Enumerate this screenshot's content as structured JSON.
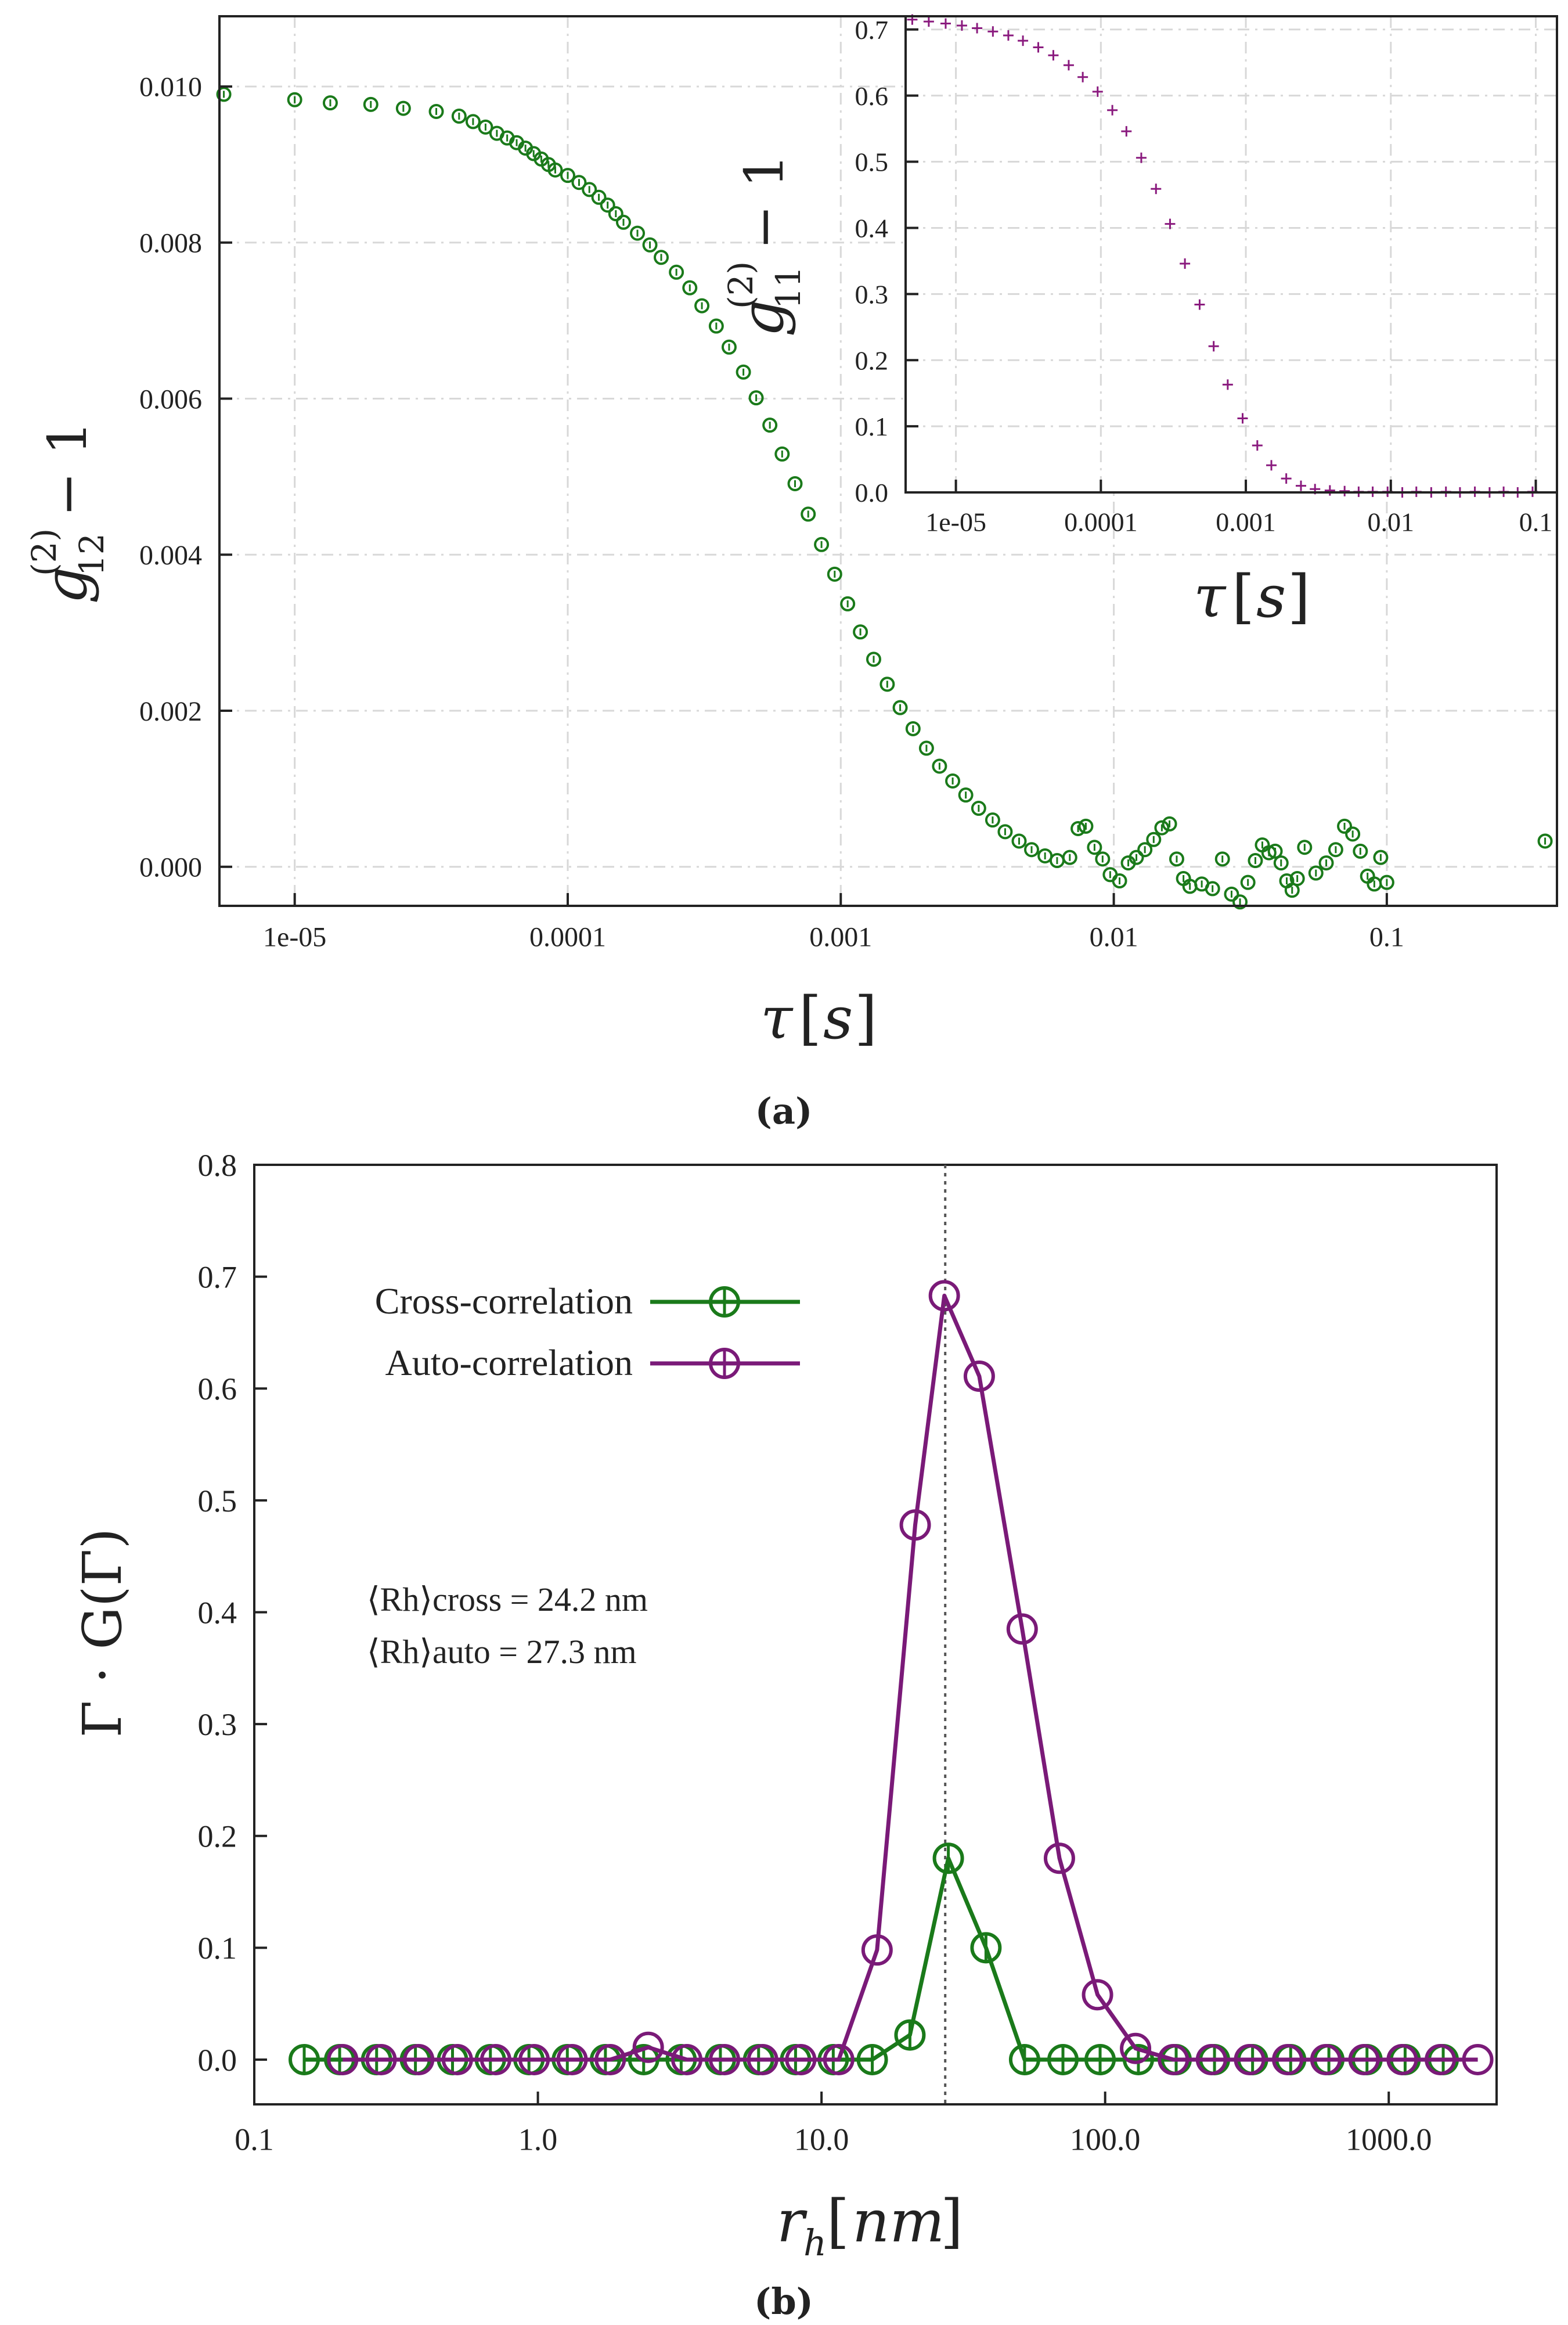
{
  "chart_data": [
    {
      "id": "a-main",
      "type": "scatter",
      "panel_label": "(a)",
      "xscale": "log",
      "xlim": [
        5.3e-06,
        0.42
      ],
      "ylim": [
        -0.0005,
        0.0109
      ],
      "xlabel": "τ[s]",
      "ylabel": "g12(2) − 1",
      "xticks": [
        {
          "v": 1e-05,
          "label": "1e-05"
        },
        {
          "v": 0.0001,
          "label": "0.0001"
        },
        {
          "v": 0.001,
          "label": "0.001"
        },
        {
          "v": 0.01,
          "label": "0.01"
        },
        {
          "v": 0.1,
          "label": "0.1"
        }
      ],
      "yticks": [
        {
          "v": 0.0,
          "label": "0.000"
        },
        {
          "v": 0.002,
          "label": "0.002"
        },
        {
          "v": 0.004,
          "label": "0.004"
        },
        {
          "v": 0.006,
          "label": "0.006"
        },
        {
          "v": 0.008,
          "label": "0.008"
        },
        {
          "v": 0.01,
          "label": "0.010"
        }
      ],
      "series": [
        {
          "name": "cross-correlation",
          "color": "#1a7a1a",
          "marker": "circle",
          "points": [
            [
              5.5e-06,
              0.0099
            ],
            [
              1e-05,
              0.00983
            ],
            [
              1.35e-05,
              0.00979
            ],
            [
              1.9e-05,
              0.00977
            ],
            [
              2.5e-05,
              0.00972
            ],
            [
              3.3e-05,
              0.00968
            ],
            [
              4e-05,
              0.00962
            ],
            [
              4.5e-05,
              0.00955
            ],
            [
              5e-05,
              0.00948
            ],
            [
              5.5e-05,
              0.0094
            ],
            [
              6e-05,
              0.00934
            ],
            [
              6.5e-05,
              0.00928
            ],
            [
              7e-05,
              0.00921
            ],
            [
              7.5e-05,
              0.00914
            ],
            [
              8e-05,
              0.00907
            ],
            [
              8.5e-05,
              0.009
            ],
            [
              9e-05,
              0.00893
            ],
            [
              0.0001,
              0.00886
            ],
            [
              0.00011,
              0.00877
            ],
            [
              0.00012,
              0.00868
            ],
            [
              0.00013,
              0.00858
            ],
            [
              0.00014,
              0.00848
            ],
            [
              0.00015,
              0.00837
            ],
            [
              0.00016,
              0.00826
            ],
            [
              0.00018,
              0.00812
            ],
            [
              0.0002,
              0.00797
            ],
            [
              0.00022,
              0.00781
            ],
            [
              0.00025,
              0.00762
            ],
            [
              0.00028,
              0.00742
            ],
            [
              0.00031,
              0.00719
            ],
            [
              0.00035,
              0.00693
            ],
            [
              0.00039,
              0.00666
            ],
            [
              0.00044,
              0.00634
            ],
            [
              0.00049,
              0.00601
            ],
            [
              0.00055,
              0.00566
            ],
            [
              0.00061,
              0.00529
            ],
            [
              0.00068,
              0.00491
            ],
            [
              0.00076,
              0.00452
            ],
            [
              0.00085,
              0.00413
            ],
            [
              0.00095,
              0.00375
            ],
            [
              0.00106,
              0.00337
            ],
            [
              0.00118,
              0.00301
            ],
            [
              0.00132,
              0.00266
            ],
            [
              0.00148,
              0.00234
            ],
            [
              0.00165,
              0.00204
            ],
            [
              0.00184,
              0.00177
            ],
            [
              0.00206,
              0.00152
            ],
            [
              0.0023,
              0.00129
            ],
            [
              0.00257,
              0.0011
            ],
            [
              0.00287,
              0.00092
            ],
            [
              0.0032,
              0.00075
            ],
            [
              0.0036,
              0.0006
            ],
            [
              0.004,
              0.00045
            ],
            [
              0.0045,
              0.00033
            ],
            [
              0.005,
              0.00022
            ],
            [
              0.0056,
              0.00014
            ],
            [
              0.0062,
              8e-05
            ],
            [
              0.0069,
              0.00012
            ],
            [
              0.0074,
              0.00049
            ],
            [
              0.0079,
              0.00052
            ],
            [
              0.0085,
              0.00025
            ],
            [
              0.0091,
              0.0001
            ],
            [
              0.0097,
              -0.0001
            ],
            [
              0.0105,
              -0.00018
            ],
            [
              0.0113,
              5e-05
            ],
            [
              0.0121,
              0.00012
            ],
            [
              0.013,
              0.00022
            ],
            [
              0.014,
              0.00035
            ],
            [
              0.015,
              0.0005
            ],
            [
              0.016,
              0.00055
            ],
            [
              0.017,
              0.0001
            ],
            [
              0.018,
              -0.00015
            ],
            [
              0.019,
              -0.00025
            ],
            [
              0.021,
              -0.00022
            ],
            [
              0.023,
              -0.00028
            ],
            [
              0.025,
              0.0001
            ],
            [
              0.027,
              -0.00035
            ],
            [
              0.029,
              -0.00045
            ],
            [
              0.031,
              -0.0002
            ],
            [
              0.033,
              8e-05
            ],
            [
              0.035,
              0.00028
            ],
            [
              0.037,
              0.00018
            ],
            [
              0.039,
              0.0002
            ],
            [
              0.041,
              5e-05
            ],
            [
              0.043,
              -0.00018
            ],
            [
              0.045,
              -0.0003
            ],
            [
              0.047,
              -0.00015
            ],
            [
              0.05,
              0.00025
            ],
            [
              0.055,
              -8e-05
            ],
            [
              0.06,
              5e-05
            ],
            [
              0.065,
              0.00022
            ],
            [
              0.07,
              0.00052
            ],
            [
              0.075,
              0.00042
            ],
            [
              0.08,
              0.0002
            ],
            [
              0.085,
              -0.00012
            ],
            [
              0.09,
              -0.00022
            ],
            [
              0.095,
              0.00012
            ],
            [
              0.1,
              -0.0002
            ],
            [
              0.38,
              0.00033
            ]
          ]
        }
      ]
    },
    {
      "id": "a-inset",
      "type": "scatter",
      "xscale": "log",
      "xlim": [
        4.5e-06,
        0.14
      ],
      "ylim": [
        0.0,
        0.72
      ],
      "xlabel": "τ[s]",
      "ylabel": "g11(2) − 1",
      "xticks": [
        {
          "v": 1e-05,
          "label": "1e-05"
        },
        {
          "v": 0.0001,
          "label": "0.0001"
        },
        {
          "v": 0.001,
          "label": "0.001"
        },
        {
          "v": 0.01,
          "label": "0.01"
        },
        {
          "v": 0.1,
          "label": "0.1"
        }
      ],
      "yticks": [
        {
          "v": 0.0,
          "label": "0.0"
        },
        {
          "v": 0.1,
          "label": "0.1"
        },
        {
          "v": 0.2,
          "label": "0.2"
        },
        {
          "v": 0.3,
          "label": "0.3"
        },
        {
          "v": 0.4,
          "label": "0.4"
        },
        {
          "v": 0.5,
          "label": "0.5"
        },
        {
          "v": 0.6,
          "label": "0.6"
        },
        {
          "v": 0.7,
          "label": "0.7"
        }
      ],
      "series": [
        {
          "name": "auto-correlation",
          "color": "#8a1a7e",
          "marker": "plus",
          "points": [
            [
              5e-06,
              0.715
            ],
            [
              6.5e-06,
              0.712
            ],
            [
              8.5e-06,
              0.709
            ],
            [
              1.1e-05,
              0.706
            ],
            [
              1.4e-05,
              0.702
            ],
            [
              1.8e-05,
              0.697
            ],
            [
              2.3e-05,
              0.691
            ],
            [
              2.9e-05,
              0.683
            ],
            [
              3.7e-05,
              0.673
            ],
            [
              4.7e-05,
              0.661
            ],
            [
              6e-05,
              0.646
            ],
            [
              7.5e-05,
              0.628
            ],
            [
              9.5e-05,
              0.606
            ],
            [
              0.00012,
              0.578
            ],
            [
              0.00015,
              0.546
            ],
            [
              0.00019,
              0.506
            ],
            [
              0.00024,
              0.459
            ],
            [
              0.0003,
              0.406
            ],
            [
              0.00038,
              0.346
            ],
            [
              0.00048,
              0.284
            ],
            [
              0.0006,
              0.221
            ],
            [
              0.00075,
              0.163
            ],
            [
              0.00095,
              0.112
            ],
            [
              0.0012,
              0.071
            ],
            [
              0.0015,
              0.041
            ],
            [
              0.0019,
              0.021
            ],
            [
              0.0024,
              0.01
            ],
            [
              0.003,
              0.005
            ],
            [
              0.0038,
              0.003
            ],
            [
              0.0048,
              0.002
            ],
            [
              0.006,
              0.001
            ],
            [
              0.0075,
              0.001
            ],
            [
              0.0095,
              0.001
            ],
            [
              0.012,
              0.0
            ],
            [
              0.015,
              0.001
            ],
            [
              0.019,
              0.0
            ],
            [
              0.024,
              0.001
            ],
            [
              0.03,
              0.0
            ],
            [
              0.038,
              0.001
            ],
            [
              0.048,
              0.0
            ],
            [
              0.06,
              0.001
            ],
            [
              0.075,
              0.0
            ],
            [
              0.095,
              0.001
            ]
          ]
        }
      ]
    },
    {
      "id": "b",
      "type": "line",
      "panel_label": "(b)",
      "xscale": "log",
      "xlim": [
        0.1,
        2400
      ],
      "ylim": [
        -0.04,
        0.8
      ],
      "xlabel": "rh[nm]",
      "ylabel": "Γ · G(Γ)",
      "xticks": [
        {
          "v": 0.1,
          "label": "0.1"
        },
        {
          "v": 1,
          "label": "1.0"
        },
        {
          "v": 10,
          "label": "10.0"
        },
        {
          "v": 100,
          "label": "100.0"
        },
        {
          "v": 1000,
          "label": "1000.0"
        }
      ],
      "yticks": [
        {
          "v": 0.0,
          "label": "0.0"
        },
        {
          "v": 0.1,
          "label": "0.1"
        },
        {
          "v": 0.2,
          "label": "0.2"
        },
        {
          "v": 0.3,
          "label": "0.3"
        },
        {
          "v": 0.4,
          "label": "0.4"
        },
        {
          "v": 0.5,
          "label": "0.5"
        },
        {
          "v": 0.6,
          "label": "0.6"
        },
        {
          "v": 0.7,
          "label": "0.7"
        },
        {
          "v": 0.8,
          "label": "0.8"
        }
      ],
      "vline_x": 27.3,
      "series": [
        {
          "name": "Cross-correlation",
          "color": "#1a7a1a",
          "x": [
            0.15,
            0.2,
            0.27,
            0.37,
            0.5,
            0.68,
            0.93,
            1.27,
            1.73,
            2.36,
            3.2,
            4.4,
            6.0,
            8.1,
            11.0,
            15.1,
            20.5,
            28.0,
            38.0,
            52.0,
            71.0,
            96.0,
            131.0,
            178.0,
            243.0,
            331.0,
            451.0,
            615.0,
            838.0,
            1142.0,
            1556.0
          ],
          "values": [
            0.0,
            0.0,
            0.0,
            0.0,
            0.0,
            0.0,
            0.0,
            0.0,
            0.0,
            0.0,
            0.0,
            0.0,
            0.0,
            0.0,
            0.0,
            0.0,
            0.022,
            0.18,
            0.1,
            0.0,
            0.0,
            0.0,
            0.0,
            0.0,
            0.0,
            0.0,
            0.0,
            0.0,
            0.0,
            0.0,
            0.0
          ]
        },
        {
          "name": "Auto-correlation",
          "color": "#7a1a78",
          "x": [
            0.205,
            0.28,
            0.38,
            0.52,
            0.71,
            0.97,
            1.32,
            1.8,
            2.45,
            3.35,
            4.55,
            6.2,
            8.45,
            11.5,
            15.7,
            21.4,
            27.1,
            36.0,
            51.0,
            69.0,
            94.0,
            128.0,
            174.0,
            237.0,
            323.0,
            440.0,
            600.0,
            818.0,
            1115.0,
            1520.0,
            2060.0
          ],
          "values": [
            0.0,
            0.0,
            0.0,
            0.0,
            0.0,
            0.0,
            0.0,
            0.0,
            0.011,
            0.0,
            0.0,
            0.0,
            0.0,
            0.0,
            0.098,
            0.478,
            0.683,
            0.611,
            0.385,
            0.18,
            0.058,
            0.01,
            0.0,
            0.0,
            0.0,
            0.0,
            0.0,
            0.0,
            0.0,
            0.0,
            0.0
          ]
        }
      ]
    }
  ],
  "annotation": {
    "cross_label": "⟨Rh⟩cross = 24.2 nm",
    "auto_label": "⟨Rh⟩auto = 27.3 nm"
  }
}
